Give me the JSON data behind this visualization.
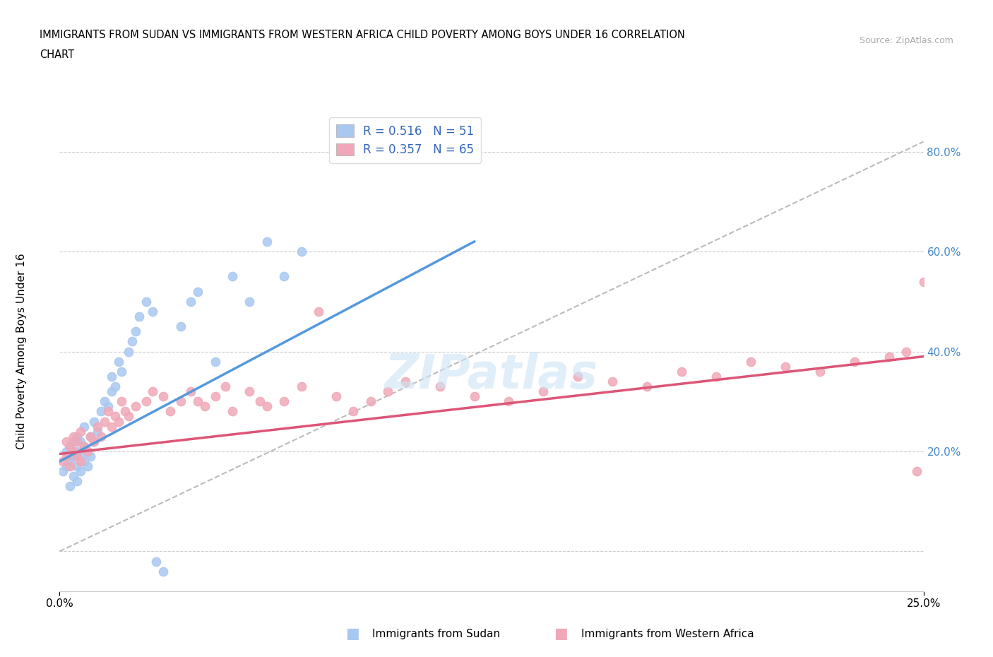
{
  "title_line1": "IMMIGRANTS FROM SUDAN VS IMMIGRANTS FROM WESTERN AFRICA CHILD POVERTY AMONG BOYS UNDER 16 CORRELATION",
  "title_line2": "CHART",
  "source_text": "Source: ZipAtlas.com",
  "ylabel_ticks": [
    0.0,
    0.2,
    0.4,
    0.6,
    0.8
  ],
  "ylabel_labels": [
    "",
    "20.0%",
    "40.0%",
    "60.0%",
    "80.0%"
  ],
  "xlim": [
    0.0,
    0.25
  ],
  "ylim": [
    -0.08,
    0.88
  ],
  "legend1_r": "0.516",
  "legend1_n": "51",
  "legend2_r": "0.357",
  "legend2_n": "65",
  "color_sudan": "#a8c8f0",
  "color_sudan_line": "#5599dd",
  "color_western": "#f0a8b8",
  "color_western_line": "#dd5577",
  "color_ref_line": "#bbbbbb",
  "sudan_x": [
    0.001,
    0.002,
    0.002,
    0.003,
    0.003,
    0.003,
    0.004,
    0.004,
    0.004,
    0.005,
    0.005,
    0.005,
    0.005,
    0.006,
    0.006,
    0.006,
    0.007,
    0.007,
    0.007,
    0.008,
    0.008,
    0.009,
    0.009,
    0.01,
    0.01,
    0.011,
    0.012,
    0.013,
    0.014,
    0.015,
    0.015,
    0.016,
    0.017,
    0.018,
    0.02,
    0.021,
    0.022,
    0.023,
    0.025,
    0.027,
    0.028,
    0.03,
    0.035,
    0.038,
    0.04,
    0.045,
    0.05,
    0.055,
    0.06,
    0.065,
    0.07
  ],
  "sudan_y": [
    0.16,
    0.17,
    0.2,
    0.13,
    0.18,
    0.21,
    0.15,
    0.19,
    0.22,
    0.14,
    0.17,
    0.2,
    0.23,
    0.16,
    0.19,
    0.22,
    0.18,
    0.21,
    0.25,
    0.17,
    0.2,
    0.19,
    0.23,
    0.22,
    0.26,
    0.24,
    0.28,
    0.3,
    0.29,
    0.32,
    0.35,
    0.33,
    0.38,
    0.36,
    0.4,
    0.42,
    0.44,
    0.47,
    0.5,
    0.48,
    -0.02,
    -0.04,
    0.45,
    0.5,
    0.52,
    0.38,
    0.55,
    0.5,
    0.62,
    0.55,
    0.6
  ],
  "western_x": [
    0.001,
    0.002,
    0.002,
    0.003,
    0.003,
    0.004,
    0.004,
    0.005,
    0.005,
    0.006,
    0.006,
    0.007,
    0.008,
    0.009,
    0.01,
    0.011,
    0.012,
    0.013,
    0.014,
    0.015,
    0.016,
    0.017,
    0.018,
    0.019,
    0.02,
    0.022,
    0.025,
    0.027,
    0.03,
    0.032,
    0.035,
    0.038,
    0.04,
    0.042,
    0.045,
    0.048,
    0.05,
    0.055,
    0.058,
    0.06,
    0.065,
    0.07,
    0.075,
    0.08,
    0.085,
    0.09,
    0.095,
    0.1,
    0.11,
    0.12,
    0.13,
    0.14,
    0.15,
    0.16,
    0.17,
    0.18,
    0.19,
    0.2,
    0.21,
    0.22,
    0.23,
    0.24,
    0.245,
    0.248,
    0.25
  ],
  "western_y": [
    0.18,
    0.19,
    0.22,
    0.17,
    0.21,
    0.2,
    0.23,
    0.19,
    0.22,
    0.18,
    0.24,
    0.21,
    0.2,
    0.23,
    0.22,
    0.25,
    0.23,
    0.26,
    0.28,
    0.25,
    0.27,
    0.26,
    0.3,
    0.28,
    0.27,
    0.29,
    0.3,
    0.32,
    0.31,
    0.28,
    0.3,
    0.32,
    0.3,
    0.29,
    0.31,
    0.33,
    0.28,
    0.32,
    0.3,
    0.29,
    0.3,
    0.33,
    0.48,
    0.31,
    0.28,
    0.3,
    0.32,
    0.34,
    0.33,
    0.31,
    0.3,
    0.32,
    0.35,
    0.34,
    0.33,
    0.36,
    0.35,
    0.38,
    0.37,
    0.36,
    0.38,
    0.39,
    0.4,
    0.16,
    0.54
  ],
  "sudan_line_x": [
    0.0,
    0.12
  ],
  "sudan_line_y": [
    0.18,
    0.62
  ],
  "western_line_x": [
    0.0,
    0.25
  ],
  "western_line_y": [
    0.195,
    0.39
  ],
  "ref_line_x": [
    0.0,
    0.25
  ],
  "ref_line_y": [
    0.0,
    0.82
  ]
}
